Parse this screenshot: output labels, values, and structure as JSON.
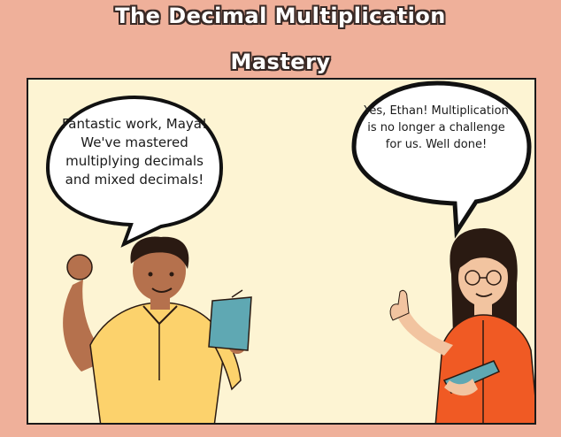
{
  "title": {
    "line1": "The Decimal Multiplication",
    "line2": "Mastery"
  },
  "bubbles": {
    "left": "Fantastic work, Maya! We've mastered multiplying decimals and mixed decimals!",
    "right": "Yes, Ethan! Multiplication is no longer a challenge for us. Well done!"
  },
  "colors": {
    "background": "#efb09a",
    "panel": "#fdf4d3",
    "boy_shirt": "#fcd26c",
    "girl_shirt": "#f05a24",
    "book_teal": "#5fa8b3",
    "skin_boy": "#b5714d",
    "skin_girl": "#f2c4a0"
  }
}
